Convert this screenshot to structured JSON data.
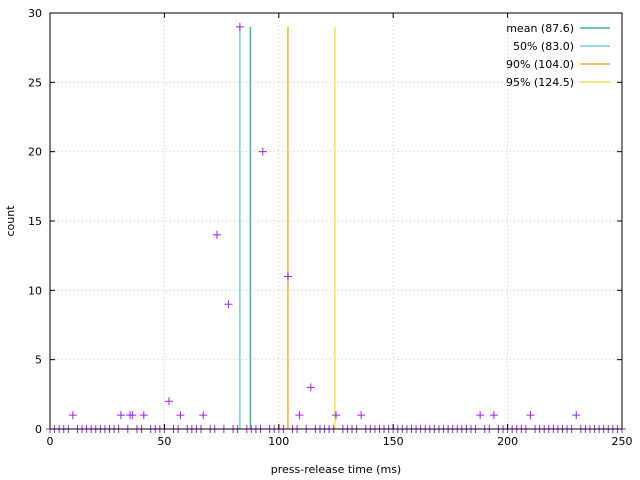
{
  "chart_data": {
    "type": "scatter",
    "xlabel": "press-release time (ms)",
    "ylabel": "count",
    "xlim": [
      0,
      250
    ],
    "ylim": [
      0,
      30
    ],
    "x_ticks": [
      0,
      50,
      100,
      150,
      200,
      250
    ],
    "y_ticks": [
      0,
      5,
      10,
      15,
      20,
      25,
      30
    ],
    "grid": true,
    "legend_position": "top-right",
    "points_color": "#a020f0",
    "series": [
      {
        "x": [
          10,
          31,
          35,
          36,
          41,
          52,
          57,
          67,
          73,
          78,
          83,
          93,
          104,
          109,
          114,
          125,
          136,
          188,
          194,
          210,
          230
        ],
        "y": [
          1,
          1,
          1,
          1,
          1,
          2,
          1,
          1,
          14,
          9,
          29,
          20,
          11,
          1,
          3,
          1,
          1,
          1,
          1,
          1,
          1
        ]
      }
    ],
    "zero_bins_step": 2,
    "reference_lines": [
      {
        "label": "mean (87.6)",
        "x": 87.6,
        "color": "#3cb89f"
      },
      {
        "label": "50% (83.0)",
        "x": 83.0,
        "color": "#7ec8e3"
      },
      {
        "label": "90% (104.0)",
        "x": 104.0,
        "color": "#f0b030"
      },
      {
        "label": "95% (124.5)",
        "x": 124.5,
        "color": "#f5e05a"
      }
    ]
  }
}
